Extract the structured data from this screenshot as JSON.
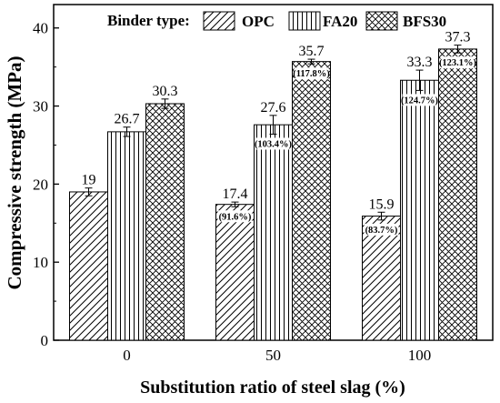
{
  "chart_data": {
    "type": "bar",
    "xlabel": "Substitution ratio of steel slag (%)",
    "ylabel": "Compressive strength (MPa)",
    "ylim": [
      0,
      43
    ],
    "yticks": [
      "0",
      "10",
      "20",
      "30",
      "40"
    ],
    "categories": [
      "0",
      "50",
      "100"
    ],
    "legend_title": "Binder type:",
    "legend_position": "top",
    "series": [
      {
        "name": "OPC",
        "pattern": "diagonal",
        "values": [
          19,
          17.4,
          15.9
        ],
        "errors": [
          0.5,
          0.3,
          0.5
        ],
        "value_labels": [
          "19",
          "17.4",
          "15.9"
        ],
        "percent_labels": [
          "",
          "(91.6%)",
          "(83.7%)"
        ]
      },
      {
        "name": "FA20",
        "pattern": "vertical",
        "values": [
          26.7,
          27.6,
          33.3
        ],
        "errors": [
          0.6,
          1.2,
          1.3
        ],
        "value_labels": [
          "26.7",
          "27.6",
          "33.3"
        ],
        "percent_labels": [
          "",
          "(103.4%)",
          "(124.7%)"
        ]
      },
      {
        "name": "BFS30",
        "pattern": "crosshatch",
        "values": [
          30.3,
          35.7,
          37.3
        ],
        "errors": [
          0.6,
          0.3,
          0.5
        ],
        "value_labels": [
          "30.3",
          "35.7",
          "37.3"
        ],
        "percent_labels": [
          "",
          "(117.8%)",
          "(123.1%)"
        ]
      }
    ],
    "colors": {
      "stroke": "#000000",
      "fill": "#ffffff"
    }
  }
}
